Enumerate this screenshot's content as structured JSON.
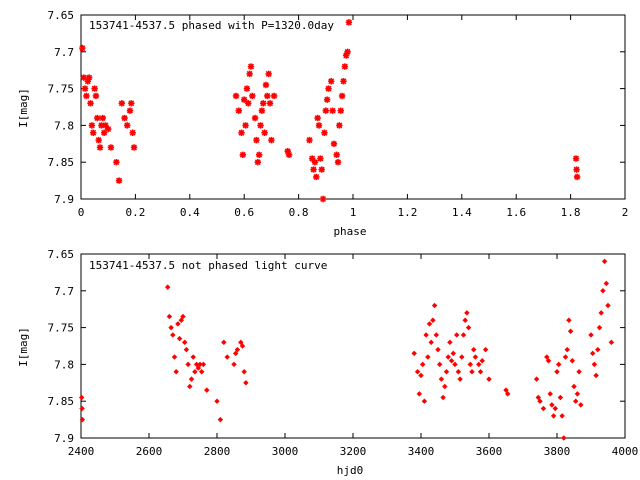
{
  "chart_data": [
    {
      "type": "scatter",
      "title": "153741-4537.5 phased with P=1320.0day",
      "xlabel": "phase",
      "ylabel": "I[mag]",
      "xlim": [
        0,
        2
      ],
      "ylim": [
        7.65,
        7.9
      ],
      "y_inverted": true,
      "x_ticks": [
        "0",
        "0.2",
        "0.4",
        "0.6",
        "0.8",
        "1",
        "1.2",
        "1.4",
        "1.6",
        "1.8",
        "2"
      ],
      "y_ticks": [
        "7.65",
        "7.7",
        "7.75",
        "7.8",
        "7.85",
        "7.9"
      ],
      "x_tick_values": [
        0,
        0.2,
        0.4,
        0.6,
        0.8,
        1.0,
        1.2,
        1.4,
        1.6,
        1.8,
        2.0
      ],
      "y_tick_values": [
        7.65,
        7.7,
        7.75,
        7.8,
        7.85,
        7.9
      ],
      "grid": false,
      "marker_color": "#ff0000",
      "points": [
        [
          0.005,
          7.695
        ],
        [
          0.01,
          7.735
        ],
        [
          0.015,
          7.75
        ],
        [
          0.02,
          7.76
        ],
        [
          0.025,
          7.74
        ],
        [
          0.03,
          7.735
        ],
        [
          0.035,
          7.77
        ],
        [
          0.04,
          7.8
        ],
        [
          0.045,
          7.81
        ],
        [
          0.05,
          7.75
        ],
        [
          0.055,
          7.76
        ],
        [
          0.06,
          7.79
        ],
        [
          0.065,
          7.82
        ],
        [
          0.07,
          7.83
        ],
        [
          0.075,
          7.8
        ],
        [
          0.08,
          7.79
        ],
        [
          0.085,
          7.81
        ],
        [
          0.09,
          7.8
        ],
        [
          0.1,
          7.805
        ],
        [
          0.11,
          7.83
        ],
        [
          0.13,
          7.85
        ],
        [
          0.14,
          7.875
        ],
        [
          0.15,
          7.77
        ],
        [
          0.16,
          7.79
        ],
        [
          0.17,
          7.8
        ],
        [
          0.18,
          7.78
        ],
        [
          0.185,
          7.77
        ],
        [
          0.19,
          7.81
        ],
        [
          0.195,
          7.83
        ],
        [
          0.57,
          7.76
        ],
        [
          0.58,
          7.78
        ],
        [
          0.59,
          7.81
        ],
        [
          0.595,
          7.84
        ],
        [
          0.6,
          7.765
        ],
        [
          0.605,
          7.8
        ],
        [
          0.61,
          7.75
        ],
        [
          0.615,
          7.77
        ],
        [
          0.62,
          7.73
        ],
        [
          0.625,
          7.72
        ],
        [
          0.63,
          7.76
        ],
        [
          0.64,
          7.79
        ],
        [
          0.645,
          7.82
        ],
        [
          0.65,
          7.85
        ],
        [
          0.655,
          7.84
        ],
        [
          0.66,
          7.8
        ],
        [
          0.665,
          7.78
        ],
        [
          0.67,
          7.77
        ],
        [
          0.675,
          7.81
        ],
        [
          0.68,
          7.745
        ],
        [
          0.685,
          7.76
        ],
        [
          0.69,
          7.73
        ],
        [
          0.695,
          7.77
        ],
        [
          0.7,
          7.82
        ],
        [
          0.71,
          7.76
        ],
        [
          0.76,
          7.835
        ],
        [
          0.765,
          7.84
        ],
        [
          0.84,
          7.82
        ],
        [
          0.85,
          7.845
        ],
        [
          0.855,
          7.86
        ],
        [
          0.86,
          7.85
        ],
        [
          0.865,
          7.87
        ],
        [
          0.87,
          7.79
        ],
        [
          0.875,
          7.8
        ],
        [
          0.88,
          7.845
        ],
        [
          0.885,
          7.86
        ],
        [
          0.89,
          7.9
        ],
        [
          0.895,
          7.81
        ],
        [
          0.9,
          7.78
        ],
        [
          0.905,
          7.765
        ],
        [
          0.91,
          7.75
        ],
        [
          0.92,
          7.74
        ],
        [
          0.925,
          7.78
        ],
        [
          0.93,
          7.825
        ],
        [
          0.94,
          7.84
        ],
        [
          0.945,
          7.85
        ],
        [
          0.95,
          7.8
        ],
        [
          0.955,
          7.78
        ],
        [
          0.96,
          7.76
        ],
        [
          0.965,
          7.74
        ],
        [
          0.97,
          7.72
        ],
        [
          0.975,
          7.705
        ],
        [
          0.98,
          7.7
        ],
        [
          0.985,
          7.66
        ],
        [
          1.82,
          7.845
        ],
        [
          1.822,
          7.86
        ],
        [
          1.824,
          7.87
        ]
      ]
    },
    {
      "type": "scatter",
      "title": "153741-4537.5 not phased light curve",
      "xlabel": "hjd0",
      "ylabel": "I[mag]",
      "xlim": [
        2400,
        4000
      ],
      "ylim": [
        7.65,
        7.9
      ],
      "y_inverted": true,
      "x_ticks": [
        "2400",
        "2600",
        "2800",
        "3000",
        "3200",
        "3400",
        "3600",
        "3800",
        "4000"
      ],
      "y_ticks": [
        "7.65",
        "7.7",
        "7.75",
        "7.8",
        "7.85",
        "7.9"
      ],
      "x_tick_values": [
        2400,
        2600,
        2800,
        3000,
        3200,
        3400,
        3600,
        3800,
        4000
      ],
      "y_tick_values": [
        7.65,
        7.7,
        7.75,
        7.8,
        7.85,
        7.9
      ],
      "grid": false,
      "marker_color": "#ff0000",
      "points": [
        [
          2402,
          7.845
        ],
        [
          2403,
          7.86
        ],
        [
          2404,
          7.875
        ],
        [
          2655,
          7.695
        ],
        [
          2660,
          7.735
        ],
        [
          2665,
          7.75
        ],
        [
          2670,
          7.76
        ],
        [
          2675,
          7.79
        ],
        [
          2680,
          7.81
        ],
        [
          2685,
          7.745
        ],
        [
          2690,
          7.765
        ],
        [
          2695,
          7.74
        ],
        [
          2700,
          7.735
        ],
        [
          2705,
          7.77
        ],
        [
          2710,
          7.78
        ],
        [
          2715,
          7.8
        ],
        [
          2720,
          7.83
        ],
        [
          2725,
          7.82
        ],
        [
          2730,
          7.79
        ],
        [
          2735,
          7.81
        ],
        [
          2740,
          7.8
        ],
        [
          2745,
          7.805
        ],
        [
          2750,
          7.8
        ],
        [
          2755,
          7.81
        ],
        [
          2760,
          7.8
        ],
        [
          2770,
          7.835
        ],
        [
          2800,
          7.85
        ],
        [
          2810,
          7.875
        ],
        [
          2820,
          7.77
        ],
        [
          2830,
          7.79
        ],
        [
          2850,
          7.8
        ],
        [
          2855,
          7.785
        ],
        [
          2860,
          7.78
        ],
        [
          2870,
          7.77
        ],
        [
          2875,
          7.775
        ],
        [
          2880,
          7.81
        ],
        [
          2885,
          7.825
        ],
        [
          3380,
          7.785
        ],
        [
          3390,
          7.81
        ],
        [
          3395,
          7.84
        ],
        [
          3400,
          7.815
        ],
        [
          3405,
          7.8
        ],
        [
          3410,
          7.85
        ],
        [
          3415,
          7.76
        ],
        [
          3420,
          7.79
        ],
        [
          3425,
          7.745
        ],
        [
          3430,
          7.77
        ],
        [
          3435,
          7.74
        ],
        [
          3440,
          7.72
        ],
        [
          3445,
          7.76
        ],
        [
          3450,
          7.78
        ],
        [
          3455,
          7.8
        ],
        [
          3460,
          7.82
        ],
        [
          3465,
          7.845
        ],
        [
          3470,
          7.83
        ],
        [
          3475,
          7.81
        ],
        [
          3480,
          7.79
        ],
        [
          3485,
          7.77
        ],
        [
          3490,
          7.795
        ],
        [
          3495,
          7.785
        ],
        [
          3500,
          7.8
        ],
        [
          3505,
          7.76
        ],
        [
          3510,
          7.81
        ],
        [
          3515,
          7.82
        ],
        [
          3520,
          7.79
        ],
        [
          3525,
          7.76
        ],
        [
          3530,
          7.74
        ],
        [
          3535,
          7.73
        ],
        [
          3540,
          7.75
        ],
        [
          3545,
          7.8
        ],
        [
          3550,
          7.81
        ],
        [
          3555,
          7.78
        ],
        [
          3560,
          7.79
        ],
        [
          3570,
          7.8
        ],
        [
          3575,
          7.81
        ],
        [
          3580,
          7.795
        ],
        [
          3590,
          7.78
        ],
        [
          3600,
          7.82
        ],
        [
          3650,
          7.835
        ],
        [
          3655,
          7.84
        ],
        [
          3740,
          7.82
        ],
        [
          3745,
          7.845
        ],
        [
          3750,
          7.85
        ],
        [
          3760,
          7.86
        ],
        [
          3770,
          7.79
        ],
        [
          3775,
          7.795
        ],
        [
          3780,
          7.84
        ],
        [
          3785,
          7.855
        ],
        [
          3790,
          7.87
        ],
        [
          3795,
          7.86
        ],
        [
          3800,
          7.81
        ],
        [
          3805,
          7.8
        ],
        [
          3810,
          7.845
        ],
        [
          3815,
          7.87
        ],
        [
          3820,
          7.9
        ],
        [
          3825,
          7.79
        ],
        [
          3830,
          7.78
        ],
        [
          3835,
          7.74
        ],
        [
          3840,
          7.755
        ],
        [
          3845,
          7.795
        ],
        [
          3850,
          7.83
        ],
        [
          3855,
          7.85
        ],
        [
          3860,
          7.84
        ],
        [
          3865,
          7.81
        ],
        [
          3870,
          7.855
        ],
        [
          3900,
          7.76
        ],
        [
          3905,
          7.785
        ],
        [
          3910,
          7.8
        ],
        [
          3915,
          7.815
        ],
        [
          3920,
          7.78
        ],
        [
          3925,
          7.75
        ],
        [
          3930,
          7.73
        ],
        [
          3935,
          7.7
        ],
        [
          3940,
          7.66
        ],
        [
          3945,
          7.69
        ],
        [
          3950,
          7.72
        ],
        [
          3960,
          7.77
        ]
      ]
    }
  ]
}
